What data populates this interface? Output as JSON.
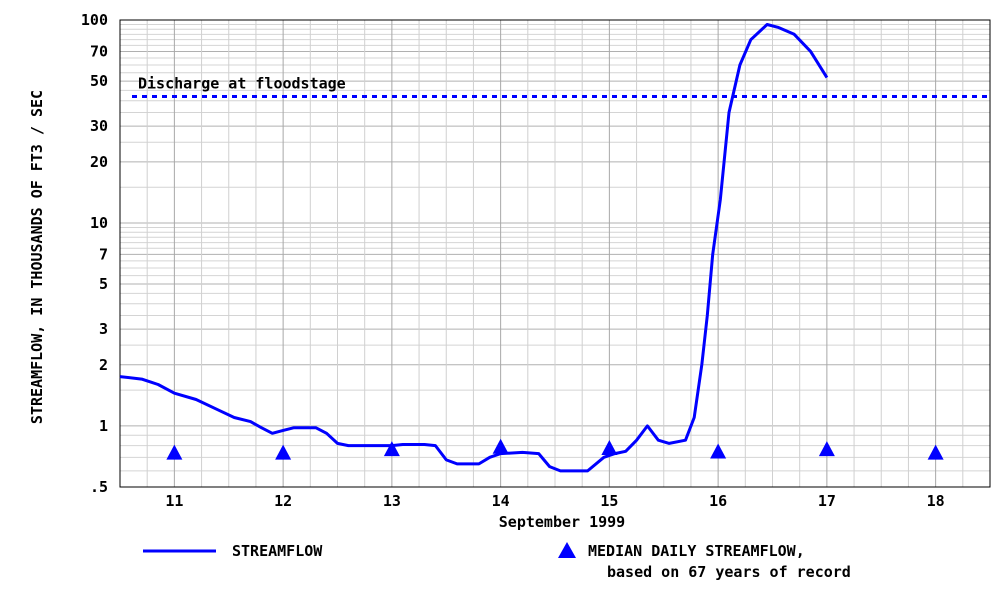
{
  "chart_data": {
    "type": "line",
    "ylabel": "STREAMFLOW, IN THOUSANDS OF FT3 / SEC",
    "xlabel": "September 1999",
    "y_scale": "log",
    "ylim": [
      0.5,
      100
    ],
    "xlim": [
      10.5,
      18.5
    ],
    "y_ticks": [
      {
        "value": 100,
        "label": "100"
      },
      {
        "value": 70,
        "label": "70"
      },
      {
        "value": 50,
        "label": "50"
      },
      {
        "value": 30,
        "label": "30"
      },
      {
        "value": 20,
        "label": "20"
      },
      {
        "value": 10,
        "label": "10"
      },
      {
        "value": 7,
        "label": "7"
      },
      {
        "value": 5,
        "label": "5"
      },
      {
        "value": 3,
        "label": "3"
      },
      {
        "value": 2,
        "label": "2"
      },
      {
        "value": 1,
        "label": "1"
      },
      {
        "value": 0.5,
        "label": ".5"
      }
    ],
    "x_ticks": [
      {
        "value": 11,
        "label": "11"
      },
      {
        "value": 12,
        "label": "12"
      },
      {
        "value": 13,
        "label": "13"
      },
      {
        "value": 14,
        "label": "14"
      },
      {
        "value": 15,
        "label": "15"
      },
      {
        "value": 16,
        "label": "16"
      },
      {
        "value": 17,
        "label": "17"
      },
      {
        "value": 18,
        "label": "18"
      }
    ],
    "grid": true,
    "floodstage": {
      "label": "Discharge at floodstage",
      "value": 42
    },
    "series": [
      {
        "name": "STREAMFLOW",
        "color": "#0000ff",
        "x": [
          10.5,
          10.7,
          10.85,
          11.0,
          11.2,
          11.4,
          11.55,
          11.7,
          11.8,
          11.9,
          12.0,
          12.1,
          12.3,
          12.4,
          12.5,
          12.6,
          12.8,
          13.0,
          13.1,
          13.3,
          13.4,
          13.5,
          13.6,
          13.8,
          13.9,
          14.0,
          14.2,
          14.35,
          14.45,
          14.55,
          14.7,
          14.8,
          14.95,
          15.05,
          15.15,
          15.25,
          15.35,
          15.45,
          15.55,
          15.7,
          15.78,
          15.85,
          15.9,
          15.95,
          16.02,
          16.1,
          16.2,
          16.3,
          16.45,
          16.55,
          16.7,
          16.85,
          17.0
        ],
        "y": [
          1.75,
          1.7,
          1.6,
          1.45,
          1.35,
          1.2,
          1.1,
          1.05,
          0.98,
          0.92,
          0.95,
          0.98,
          0.98,
          0.92,
          0.82,
          0.8,
          0.8,
          0.8,
          0.81,
          0.81,
          0.8,
          0.68,
          0.65,
          0.65,
          0.7,
          0.73,
          0.74,
          0.73,
          0.63,
          0.6,
          0.6,
          0.6,
          0.7,
          0.73,
          0.75,
          0.85,
          1.0,
          0.85,
          0.82,
          0.85,
          1.1,
          2.0,
          3.5,
          7.0,
          13.0,
          35.0,
          60.0,
          80.0,
          95.0,
          92.0,
          85.0,
          70.0,
          52.0
        ]
      },
      {
        "name": "MEDIAN DAILY STREAMFLOW,",
        "color": "#0000ff",
        "marker": "triangle",
        "x": [
          11,
          12,
          13,
          14,
          15,
          16,
          17,
          18
        ],
        "y": [
          0.73,
          0.73,
          0.76,
          0.78,
          0.77,
          0.74,
          0.76,
          0.73
        ]
      }
    ],
    "legend": [
      {
        "label": "STREAMFLOW",
        "sub": ""
      },
      {
        "label": "MEDIAN DAILY STREAMFLOW,",
        "sub": "based on 67 years of record"
      }
    ]
  }
}
